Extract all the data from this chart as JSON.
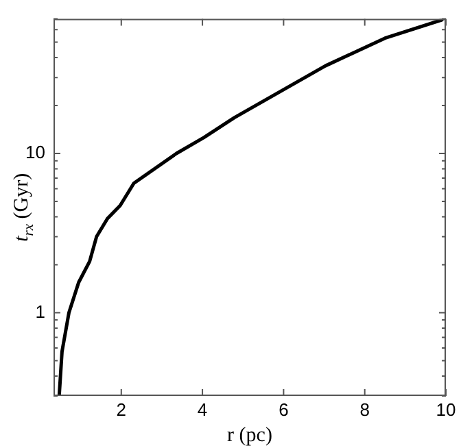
{
  "chart_data": {
    "type": "line",
    "xlabel": "r (pc)",
    "ylabel": "t$_{rx}$ (Gyr)",
    "log": "y",
    "grid": false,
    "legend": false,
    "marker": "none",
    "line_style": "solid",
    "xlim": [
      0.33,
      10
    ],
    "ylim": [
      0.3,
      70
    ],
    "xticks": [
      2,
      4,
      6,
      8,
      10
    ],
    "yticks": [
      {
        "value": 0.3,
        "label": null
      },
      {
        "value": 0.4,
        "label": null
      },
      {
        "value": 0.5,
        "label": null
      },
      {
        "value": 0.6,
        "label": null
      },
      {
        "value": 0.7,
        "label": null
      },
      {
        "value": 0.8,
        "label": null
      },
      {
        "value": 0.9,
        "label": null
      },
      1,
      {
        "value": 2,
        "label": null
      },
      {
        "value": 3,
        "label": null
      },
      {
        "value": 4,
        "label": null
      },
      {
        "value": 5,
        "label": null
      },
      {
        "value": 6,
        "label": null
      },
      {
        "value": 7,
        "label": null
      },
      {
        "value": 8,
        "label": null
      },
      {
        "value": 9,
        "label": null
      },
      10,
      {
        "value": 20,
        "label": null
      },
      {
        "value": 30,
        "label": null
      },
      {
        "value": 40,
        "label": null
      },
      {
        "value": 50,
        "label": null
      },
      {
        "value": 60,
        "label": null
      },
      {
        "value": 70,
        "label": null
      }
    ],
    "series": [
      {
        "color": "#000000",
        "x": [
          0.47,
          0.54,
          0.71,
          0.95,
          1.22,
          1.39,
          1.66,
          1.97,
          2.31,
          3.36,
          4.04,
          4.79,
          7.03,
          8.5,
          9.9
        ],
        "values": [
          0.3,
          0.57,
          1.0,
          1.55,
          2.1,
          3.0,
          3.9,
          4.7,
          6.5,
          10.0,
          12.6,
          16.8,
          35.5,
          53,
          69
        ]
      }
    ]
  }
}
